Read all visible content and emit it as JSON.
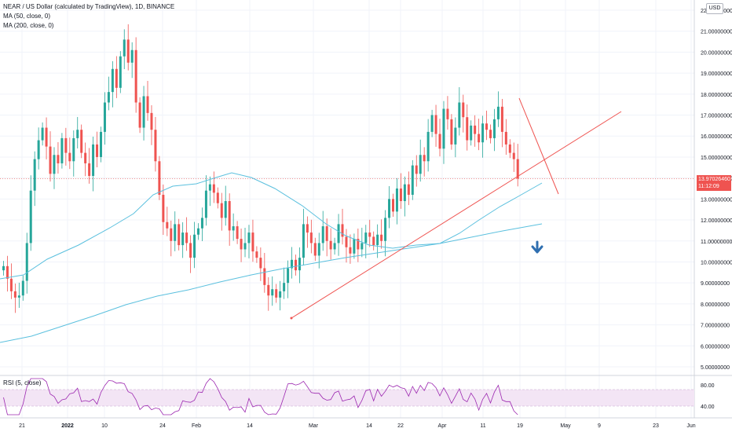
{
  "legend": {
    "title": "NEAR / US Dollar (calculated by TradingView), 1D, BINANCE",
    "ma50": "MA (50, close, 0)",
    "ma200": "MA (200, close, 0)"
  },
  "currency_badge": "USD",
  "last_price": {
    "value": "13.97026460",
    "countdown": "11:12:09"
  },
  "rsi": {
    "label": "RSI (5, close)",
    "levels": [
      "80.00",
      "40.00"
    ]
  },
  "colors": {
    "up": "#26a69a",
    "down": "#ef5350",
    "ma": "#5bc0de",
    "rsi_line": "#9c27b0",
    "rsi_band": "#f3e5f5",
    "trendline": "#ef5350",
    "arrow": "#2f6fb0"
  },
  "chart_data": [
    {
      "type": "candlestick",
      "symbol": "NEAR/USD",
      "timeframe": "1D",
      "x_ticks": [
        "21",
        "2022",
        "10",
        "24",
        "Feb",
        "14",
        "Mar",
        "14",
        "22",
        "Apr",
        "11",
        "19",
        "May",
        "9",
        "23",
        "Jun"
      ],
      "y_ticks": [
        "5.00000000",
        "6.00000000",
        "7.00000000",
        "8.00000000",
        "9.00000000",
        "10.00000000",
        "11.00000000",
        "12.00000000",
        "13.00000000",
        "14.00000000",
        "15.00000000",
        "16.00000000",
        "17.00000000",
        "18.00000000",
        "19.00000000",
        "20.00000000",
        "21.00000000",
        "22.00000000"
      ],
      "ylim": [
        4.7,
        22.3
      ],
      "candles_close": [
        9.8,
        9.2,
        8.6,
        8.3,
        8.4,
        9.1,
        10.9,
        13.4,
        14.9,
        15.8,
        16.4,
        15.5,
        14.2,
        15.1,
        14.7,
        15.9,
        15.2,
        14.8,
        15.9,
        16.3,
        15.2,
        14.7,
        14.1,
        15.6,
        15.0,
        16.2,
        17.6,
        18.1,
        19.2,
        18.3,
        19.8,
        20.6,
        19.5,
        20.1,
        17.6,
        16.4,
        17.9,
        17.1,
        16.3,
        14.8,
        13.2,
        11.9,
        11.6,
        11.0,
        11.8,
        10.8,
        11.4,
        10.9,
        10.2,
        11.3,
        11.6,
        12.1,
        13.4,
        13.7,
        13.3,
        12.8,
        12.1,
        12.9,
        11.5,
        11.7,
        11.1,
        10.6,
        10.9,
        11.4,
        10.5,
        10.2,
        9.7,
        8.9,
        8.4,
        8.7,
        8.3,
        8.6,
        9.0,
        9.7,
        10.1,
        9.6,
        10.2,
        11.8,
        11.4,
        10.9,
        10.3,
        10.9,
        11.7,
        11.0,
        10.6,
        10.9,
        11.8,
        11.2,
        10.7,
        10.4,
        11.1,
        10.6,
        10.9,
        11.4,
        11.2,
        10.8,
        11.3,
        11.0,
        12.1,
        13.0,
        12.4,
        13.5,
        12.9,
        13.7,
        13.2,
        14.6,
        14.2,
        15.1,
        14.8,
        16.2,
        17.0,
        16.1,
        15.4,
        17.3,
        16.8,
        15.6,
        16.4,
        17.6,
        16.9,
        15.8,
        16.5,
        16.1,
        15.7,
        16.6,
        16.3,
        15.9,
        16.8,
        17.4,
        16.2,
        15.6,
        15.2,
        14.9,
        13.97
      ],
      "candles_open": [
        9.6,
        9.8,
        9.2,
        8.6,
        8.3,
        8.4,
        9.1,
        10.9,
        13.4,
        14.9,
        15.8,
        16.4,
        15.5,
        14.2,
        15.1,
        14.7,
        15.9,
        15.2,
        14.8,
        15.9,
        16.3,
        15.2,
        14.7,
        14.1,
        15.6,
        15.0,
        16.2,
        17.6,
        18.1,
        19.2,
        18.3,
        19.8,
        20.6,
        19.5,
        20.1,
        17.6,
        16.4,
        17.9,
        17.1,
        16.3,
        14.8,
        13.2,
        11.9,
        11.6,
        11.0,
        11.8,
        10.8,
        11.4,
        10.9,
        10.2,
        11.3,
        11.6,
        12.1,
        13.4,
        13.7,
        13.3,
        12.8,
        12.1,
        12.9,
        11.5,
        11.7,
        11.1,
        10.6,
        10.9,
        11.4,
        10.5,
        10.2,
        9.7,
        8.9,
        8.4,
        8.7,
        8.3,
        8.6,
        9.0,
        9.7,
        10.1,
        9.6,
        10.2,
        11.8,
        11.4,
        10.9,
        10.3,
        10.9,
        11.7,
        11.0,
        10.6,
        10.9,
        11.8,
        11.2,
        10.7,
        10.4,
        11.1,
        10.6,
        10.9,
        11.4,
        11.2,
        10.8,
        11.3,
        11.0,
        12.1,
        13.0,
        12.4,
        13.5,
        12.9,
        13.7,
        13.2,
        14.6,
        14.2,
        15.1,
        14.8,
        16.2,
        17.0,
        16.1,
        15.4,
        17.3,
        16.8,
        15.6,
        16.4,
        17.6,
        16.9,
        15.8,
        16.5,
        16.1,
        15.7,
        16.6,
        16.3,
        15.9,
        16.8,
        17.4,
        16.2,
        15.6,
        15.2,
        14.9
      ]
    },
    {
      "type": "line",
      "title": "RSI (5, close)",
      "levels": [
        80,
        40
      ]
    }
  ]
}
